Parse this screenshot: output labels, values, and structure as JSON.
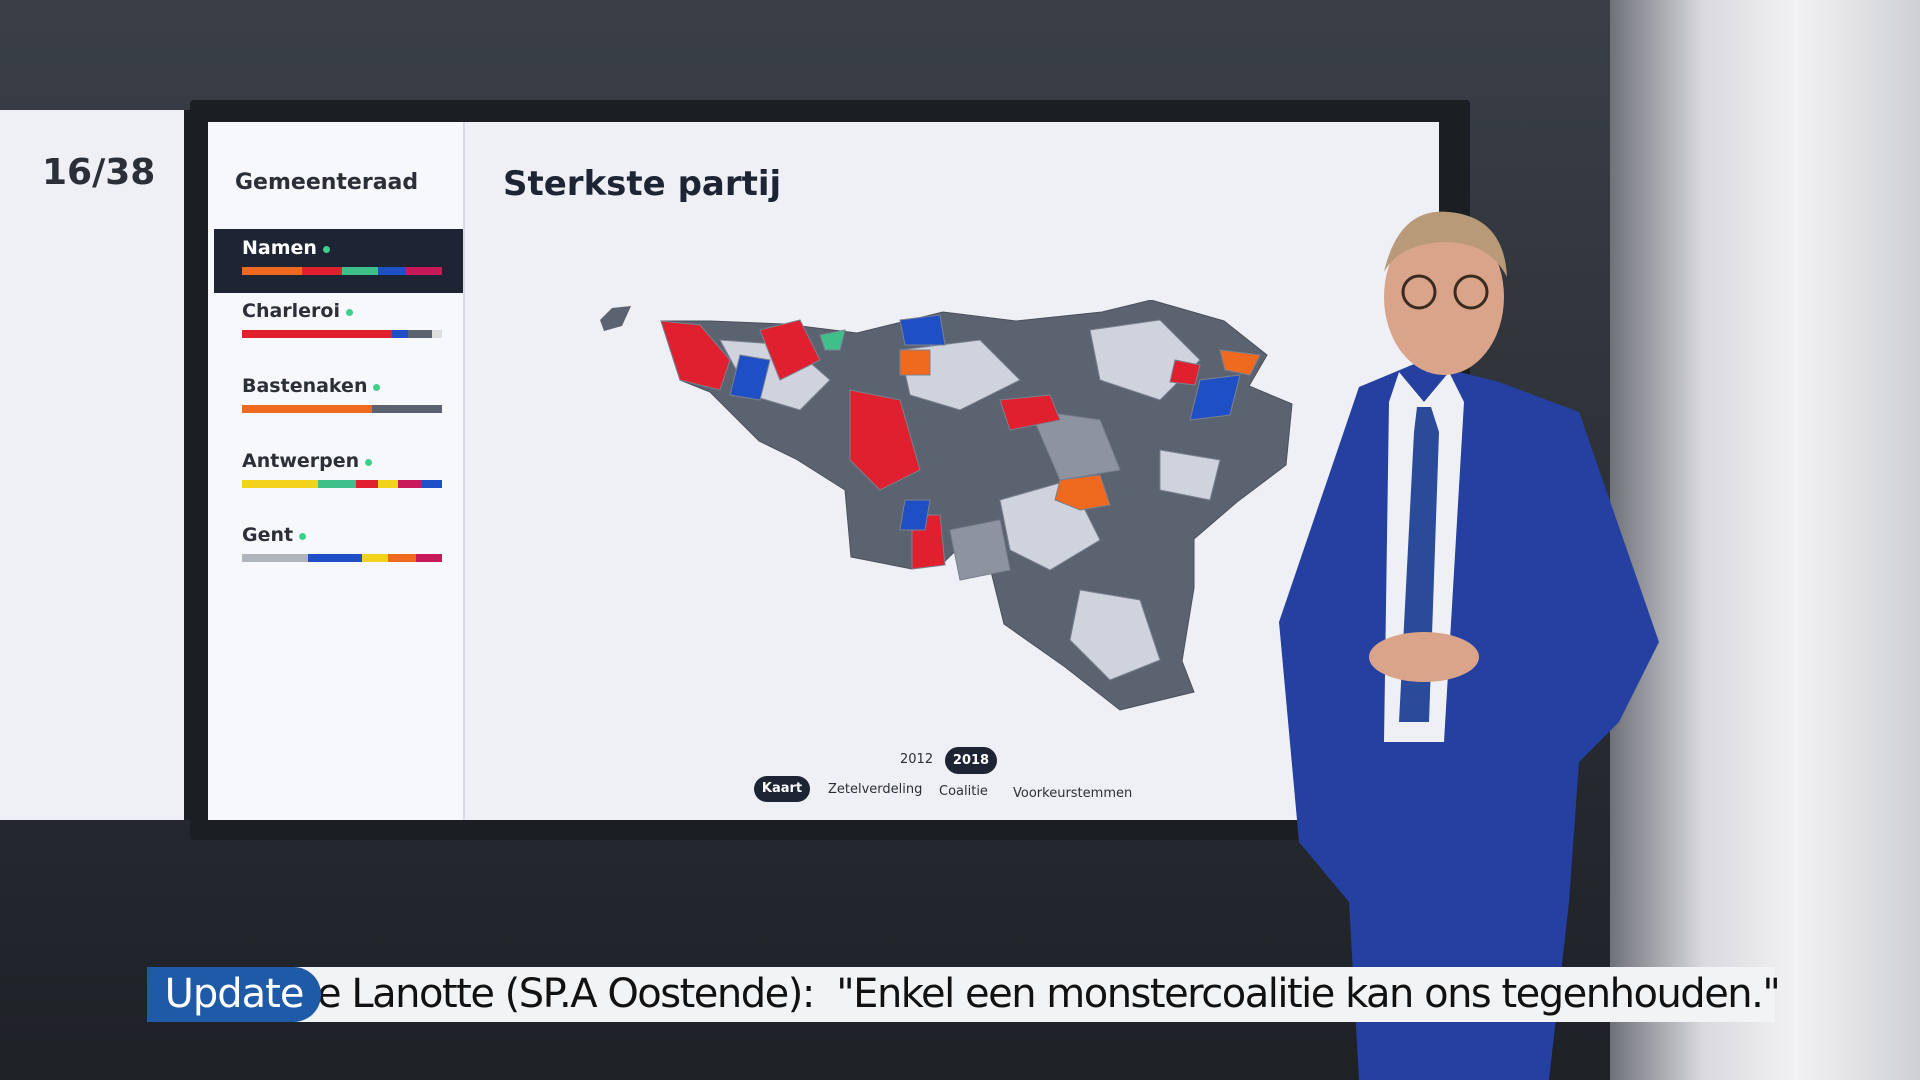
{
  "screen": {
    "counter": "16/38",
    "section": "Gemeenteraad",
    "title": "Sterkste partij",
    "list": [
      "Namen",
      "Charleroi",
      "Bastenaken",
      "Antwerpen",
      "Gent"
    ],
    "years": [
      "2012",
      "2018"
    ],
    "tabs": [
      "Kaart",
      "Zetelverdeling",
      "Coalitie",
      "Voorkeurstemmen"
    ]
  },
  "ticker": {
    "tag": "Update",
    "text": "e Lanotte (SP.A Oostende):  \"Enkel een monstercoalitie kan ons tegenhouden.\""
  }
}
